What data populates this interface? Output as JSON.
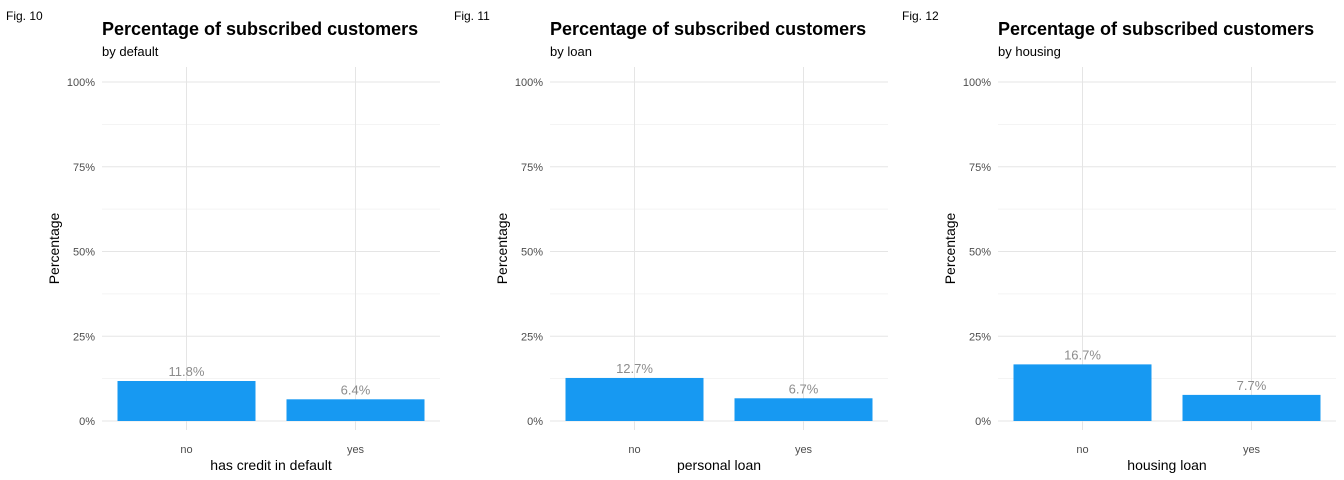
{
  "chart_data": [
    {
      "type": "bar",
      "figure_label": "Fig. 10",
      "title": "Percentage of subscribed customers",
      "subtitle": "by default",
      "xlabel": "has credit in default",
      "ylabel": "Percentage",
      "categories": [
        "no",
        "yes"
      ],
      "values": [
        11.8,
        6.4
      ],
      "value_labels": [
        "11.8%",
        "6.4%"
      ],
      "ylim": [
        0,
        100
      ],
      "yticks": [
        0,
        25,
        50,
        75,
        100
      ],
      "ytick_labels": [
        "0%",
        "25%",
        "50%",
        "75%",
        "100%"
      ],
      "bar_color": "#1799F2",
      "grid": true,
      "legend": false
    },
    {
      "type": "bar",
      "figure_label": "Fig. 11",
      "title": "Percentage of subscribed customers",
      "subtitle": "by loan",
      "xlabel": "personal loan",
      "ylabel": "Percentage",
      "categories": [
        "no",
        "yes"
      ],
      "values": [
        12.7,
        6.7
      ],
      "value_labels": [
        "12.7%",
        "6.7%"
      ],
      "ylim": [
        0,
        100
      ],
      "yticks": [
        0,
        25,
        50,
        75,
        100
      ],
      "ytick_labels": [
        "0%",
        "25%",
        "50%",
        "75%",
        "100%"
      ],
      "bar_color": "#1799F2",
      "grid": true,
      "legend": false
    },
    {
      "type": "bar",
      "figure_label": "Fig. 12",
      "title": "Percentage of subscribed customers",
      "subtitle": "by housing",
      "xlabel": "housing loan",
      "ylabel": "Percentage",
      "categories": [
        "no",
        "yes"
      ],
      "values": [
        16.7,
        7.7
      ],
      "value_labels": [
        "16.7%",
        "7.7%"
      ],
      "ylim": [
        0,
        100
      ],
      "yticks": [
        0,
        25,
        50,
        75,
        100
      ],
      "ytick_labels": [
        "0%",
        "25%",
        "50%",
        "75%",
        "100%"
      ],
      "bar_color": "#1799F2",
      "grid": true,
      "legend": false
    }
  ]
}
